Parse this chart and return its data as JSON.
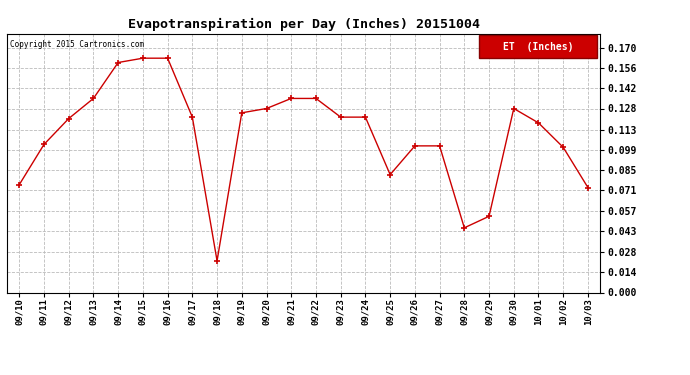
{
  "title": "Evapotranspiration per Day (Inches) 20151004",
  "copyright_text": "Copyright 2015 Cartronics.com",
  "legend_label": "ET  (Inches)",
  "legend_bg": "#cc0000",
  "background_color": "#ffffff",
  "line_color": "#cc0000",
  "marker_color": "#cc0000",
  "grid_color": "#bbbbbb",
  "dates": [
    "09/10",
    "09/11",
    "09/12",
    "09/13",
    "09/14",
    "09/15",
    "09/16",
    "09/17",
    "09/18",
    "09/19",
    "09/20",
    "09/21",
    "09/22",
    "09/23",
    "09/24",
    "09/25",
    "09/26",
    "09/27",
    "09/28",
    "09/29",
    "09/30",
    "10/01",
    "10/02",
    "10/03"
  ],
  "values": [
    0.075,
    0.103,
    0.121,
    0.135,
    0.16,
    0.163,
    0.163,
    0.122,
    0.022,
    0.125,
    0.128,
    0.135,
    0.135,
    0.122,
    0.122,
    0.082,
    0.102,
    0.102,
    0.045,
    0.053,
    0.128,
    0.118,
    0.101,
    0.073
  ],
  "ylim": [
    0.0,
    0.18
  ],
  "yticks": [
    0.0,
    0.014,
    0.028,
    0.043,
    0.057,
    0.071,
    0.085,
    0.099,
    0.113,
    0.128,
    0.142,
    0.156,
    0.17
  ]
}
